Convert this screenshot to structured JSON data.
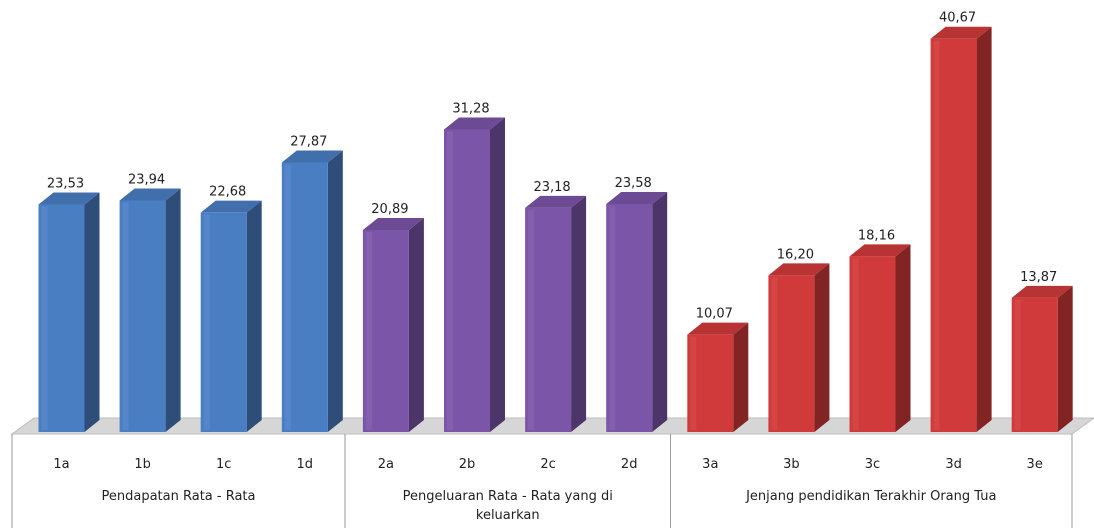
{
  "chart_data": {
    "type": "bar",
    "title": "",
    "xlabel": "",
    "ylabel": "",
    "ylim": [
      0,
      42
    ],
    "grid": false,
    "legend": "none",
    "bar_style": "3d",
    "groups": [
      {
        "label": "Pendapatan Rata - Rata",
        "color": "#4a7ec3",
        "categories": [
          "1a",
          "1b",
          "1c",
          "1d"
        ],
        "values": [
          23.53,
          23.94,
          22.68,
          27.87
        ],
        "value_labels": [
          "23,53",
          "23,94",
          "22,68",
          "27,87"
        ]
      },
      {
        "label": "Pengeluaran Rata - Rata yang di keluarkan",
        "color": "#7b55a8",
        "categories": [
          "2a",
          "2b",
          "2c",
          "2d"
        ],
        "values": [
          20.89,
          31.28,
          23.18,
          23.58
        ],
        "value_labels": [
          "20,89",
          "31,28",
          "23,18",
          "23,58"
        ]
      },
      {
        "label": "Jenjang pendidikan Terakhir Orang Tua",
        "color": "#d13a3a",
        "categories": [
          "3a",
          "3b",
          "3c",
          "3d",
          "3e"
        ],
        "values": [
          10.07,
          16.2,
          18.16,
          40.67,
          13.87
        ],
        "value_labels": [
          "10,07",
          "16,20",
          "18,16",
          "40,67",
          "13,87"
        ]
      }
    ]
  }
}
